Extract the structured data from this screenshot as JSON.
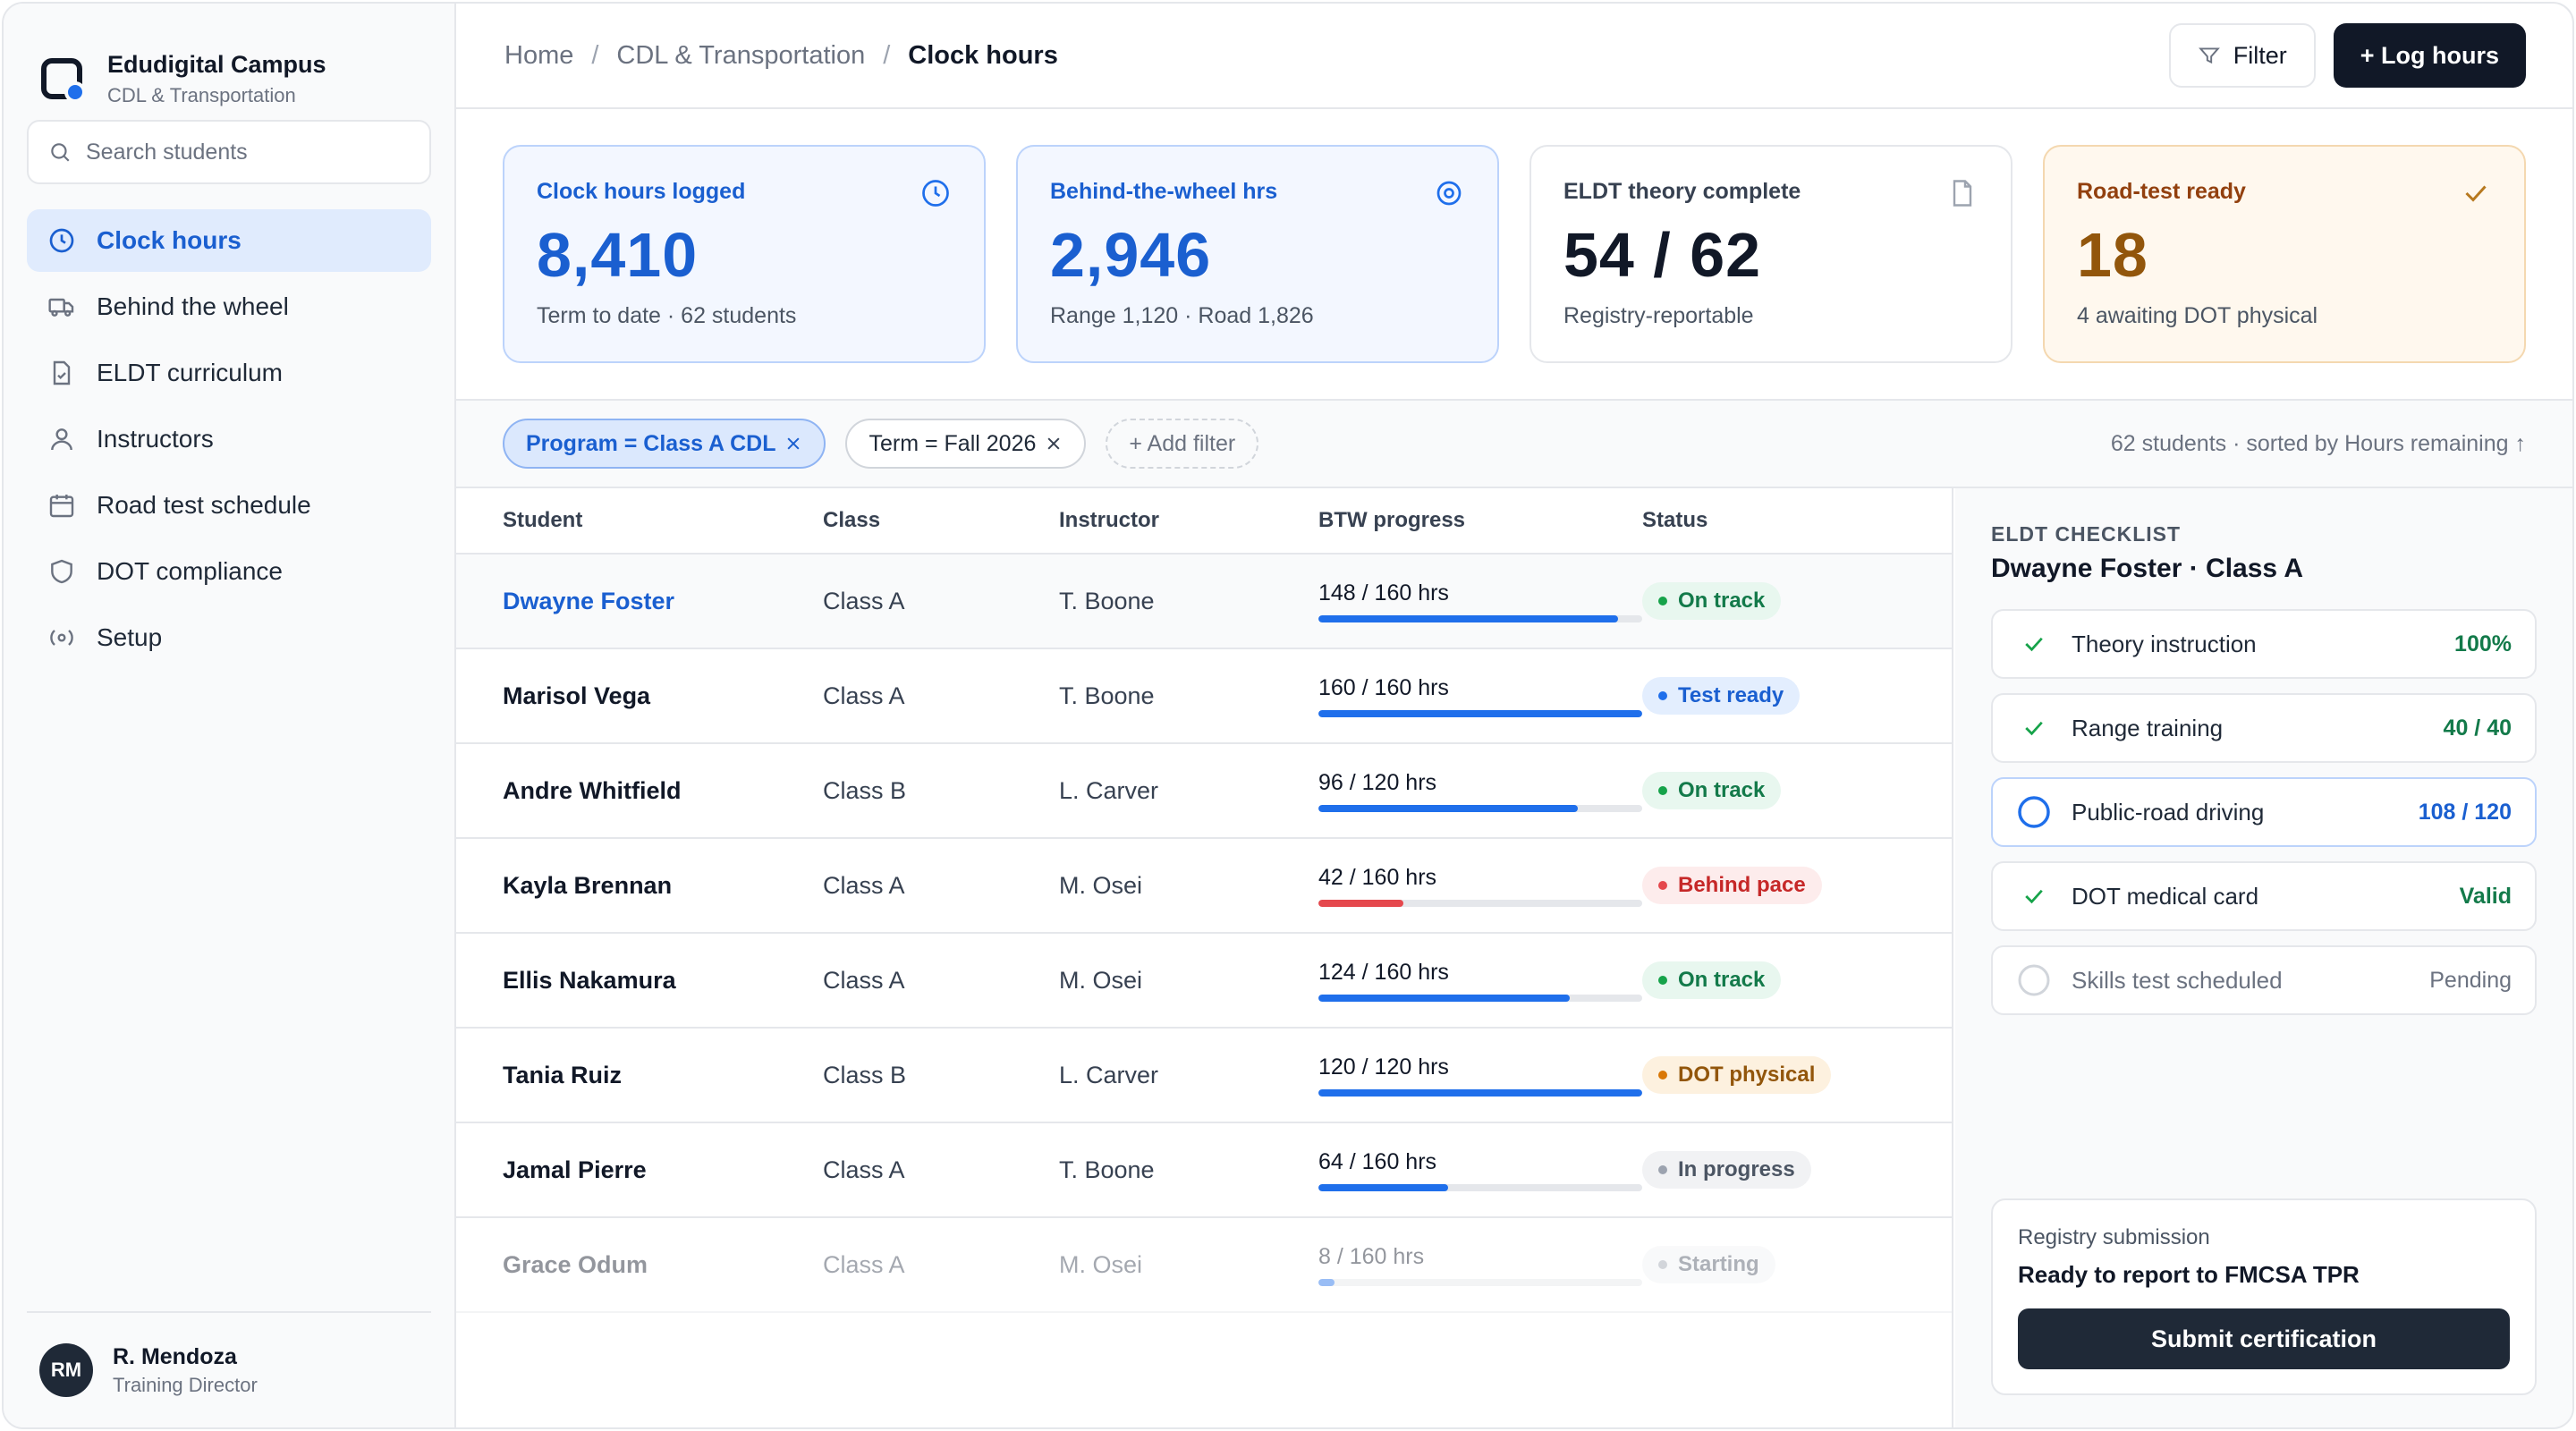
{
  "brand": {
    "name": "Edudigital Campus",
    "subtitle": "CDL & Transportation"
  },
  "search": {
    "placeholder": "Search students"
  },
  "nav": [
    {
      "label": "Clock hours",
      "icon": "clock-icon",
      "active": true
    },
    {
      "label": "Behind the wheel",
      "icon": "truck-icon"
    },
    {
      "label": "ELDT curriculum",
      "icon": "document-check-icon"
    },
    {
      "label": "Instructors",
      "icon": "person-icon"
    },
    {
      "label": "Road test schedule",
      "icon": "calendar-icon"
    },
    {
      "label": "DOT compliance",
      "icon": "shield-icon"
    },
    {
      "label": "Setup",
      "icon": "settings-icon"
    }
  ],
  "user": {
    "initials": "RM",
    "name": "R. Mendoza",
    "role": "Training Director"
  },
  "breadcrumb": {
    "home": "Home",
    "section": "CDL & Transportation",
    "current": "Clock hours",
    "separator": "/"
  },
  "actions": {
    "filter": "Filter",
    "log_hours": "+ Log hours"
  },
  "kpis": [
    {
      "label": "Clock hours logged",
      "value": "8,410",
      "sub": "Term to date · 62 students",
      "icon": "clock-icon"
    },
    {
      "label": "Behind-the-wheel hrs",
      "value": "2,946",
      "sub": "Range 1,120 · Road 1,826",
      "icon": "target-icon"
    },
    {
      "label": "ELDT theory complete",
      "value": "54 / 62",
      "sub": "Registry-reportable",
      "icon": "document-icon"
    },
    {
      "label": "Road-test ready",
      "value": "18",
      "sub": "4 awaiting DOT physical",
      "icon": "check-icon"
    }
  ],
  "filters": {
    "chips": [
      "Program = Class A CDL",
      "Term = Fall 2026"
    ],
    "add": "+ Add filter",
    "summary": "62 students · sorted by Hours remaining ↑"
  },
  "table": {
    "columns": [
      "Student",
      "Class",
      "Instructor",
      "BTW progress",
      "Status"
    ],
    "rows": [
      {
        "student": "Dwayne Foster",
        "class": "Class A",
        "instructor": "T. Boone",
        "progress": "148 / 160 hrs",
        "fraction": 0.925,
        "status": "On track",
        "tone": "green"
      },
      {
        "student": "Marisol Vega",
        "class": "Class A",
        "instructor": "T. Boone",
        "progress": "160 / 160 hrs",
        "fraction": 1.0,
        "status": "Test ready",
        "tone": "blue"
      },
      {
        "student": "Andre Whitfield",
        "class": "Class B",
        "instructor": "L. Carver",
        "progress": "96 / 120 hrs",
        "fraction": 0.8,
        "status": "On track",
        "tone": "green"
      },
      {
        "student": "Kayla Brennan",
        "class": "Class A",
        "instructor": "M. Osei",
        "progress": "42 / 160 hrs",
        "fraction": 0.2625,
        "status": "Behind pace",
        "tone": "red"
      },
      {
        "student": "Ellis Nakamura",
        "class": "Class A",
        "instructor": "M. Osei",
        "progress": "124 / 160 hrs",
        "fraction": 0.775,
        "status": "On track",
        "tone": "green"
      },
      {
        "student": "Tania Ruiz",
        "class": "Class B",
        "instructor": "L. Carver",
        "progress": "120 / 120 hrs",
        "fraction": 1.0,
        "status": "DOT physical",
        "tone": "amber"
      },
      {
        "student": "Jamal Pierre",
        "class": "Class A",
        "instructor": "T. Boone",
        "progress": "64 / 160 hrs",
        "fraction": 0.4,
        "status": "In progress",
        "tone": "gray"
      },
      {
        "student": "Grace Odum",
        "class": "Class A",
        "instructor": "M. Osei",
        "progress": "8 / 160 hrs",
        "fraction": 0.05,
        "status": "Starting",
        "tone": "gray"
      }
    ]
  },
  "checklist": {
    "eyebrow": "ELDT CHECKLIST",
    "title": "Dwayne Foster · Class A",
    "items": [
      {
        "label": "Theory instruction",
        "value": "100%",
        "state": "done"
      },
      {
        "label": "Range training",
        "value": "40 / 40",
        "state": "done"
      },
      {
        "label": "Public-road driving",
        "value": "108 / 120",
        "state": "current"
      },
      {
        "label": "DOT medical card",
        "value": "Valid",
        "state": "done"
      },
      {
        "label": "Skills test scheduled",
        "value": "Pending",
        "state": "pending"
      }
    ]
  },
  "registry": {
    "label": "Registry submission",
    "title": "Ready to report to FMCSA TPR",
    "button": "Submit certification"
  }
}
